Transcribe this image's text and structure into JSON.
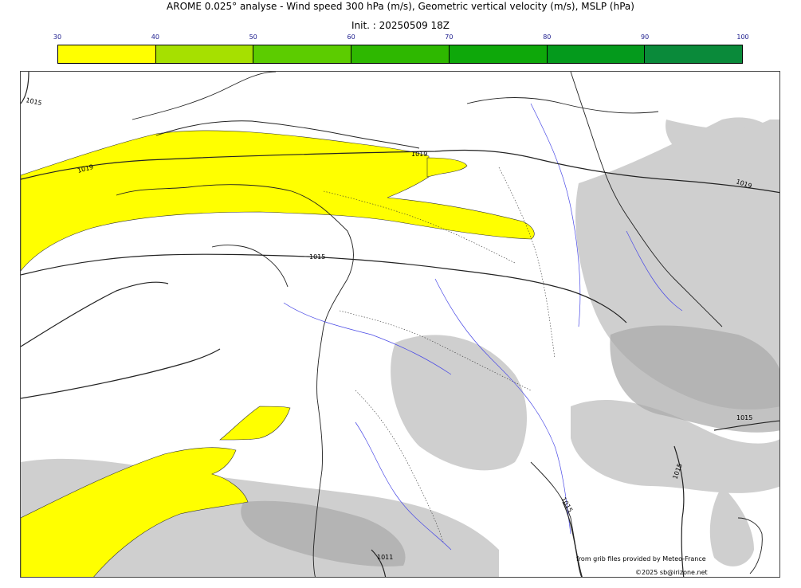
{
  "title": "AROME 0.025° analyse - Wind speed 300 hPa (m/s), Geometric vertical velocity (m/s), MSLP (hPa)",
  "subtitle": "Init. : 20250509 18Z",
  "colorbar": {
    "ticks": [
      "30",
      "40",
      "50",
      "60",
      "70",
      "80",
      "90",
      "100"
    ],
    "colors": [
      "#ffff00",
      "#a6e000",
      "#5ccc00",
      "#2eb800",
      "#0ea80a",
      "#049a1c",
      "#0a8a3a",
      "#0b7a52"
    ]
  },
  "isobar_labels": [
    "1015",
    "1019",
    "1019",
    "1019",
    "1015",
    "1015",
    "1015",
    "1015",
    "1011"
  ],
  "credits": {
    "source": "from grib files provided by Meteo-France",
    "copyright": "©2025 sb@irizone.net"
  }
}
